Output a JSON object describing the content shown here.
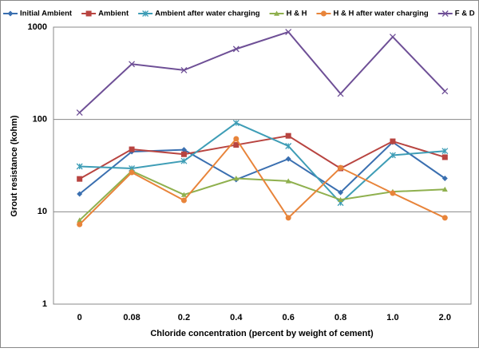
{
  "chart_data": {
    "type": "line",
    "x_label": "Chloride concentration (percent by weight of cement)",
    "y_label": "Grout resistance (kohm)",
    "categories": [
      "0",
      "0.08",
      "0.2",
      "0.4",
      "0.6",
      "0.8",
      "1.0",
      "2.0"
    ],
    "ylim": [
      1,
      1000
    ],
    "yticks": [
      1,
      10,
      100,
      1000
    ],
    "log_scale": true,
    "grid": true,
    "legend": "top",
    "series": [
      {
        "name": "Initial Ambient",
        "color": "#3a6fb0",
        "marker": "diamond",
        "values": [
          15.6,
          44.8,
          47,
          22.3,
          37.4,
          16.2,
          56.8,
          23
        ]
      },
      {
        "name": "Ambient",
        "color": "#b84440",
        "marker": "square",
        "values": [
          22.7,
          47.5,
          42,
          53,
          66.5,
          29.5,
          58,
          39
        ]
      },
      {
        "name": "Ambient after water charging",
        "color": "#3e9db6",
        "marker": "star",
        "values": [
          31,
          29.5,
          35.5,
          91.6,
          51.5,
          12.5,
          41,
          45.5
        ]
      },
      {
        "name": "H & H",
        "color": "#8fb04e",
        "marker": "triangle",
        "values": [
          8.1,
          27.7,
          15.3,
          23,
          21.5,
          13.5,
          16.5,
          17.5
        ]
      },
      {
        "name": "H & H after water charging",
        "color": "#e8843a",
        "marker": "circle",
        "values": [
          7.3,
          26.7,
          13.3,
          61.6,
          8.6,
          30,
          15.9,
          8.6
        ]
      },
      {
        "name": "F & D",
        "color": "#6e4f96",
        "marker": "cross",
        "values": [
          118.7,
          398,
          342,
          580,
          887,
          190,
          785,
          202
        ]
      }
    ]
  }
}
